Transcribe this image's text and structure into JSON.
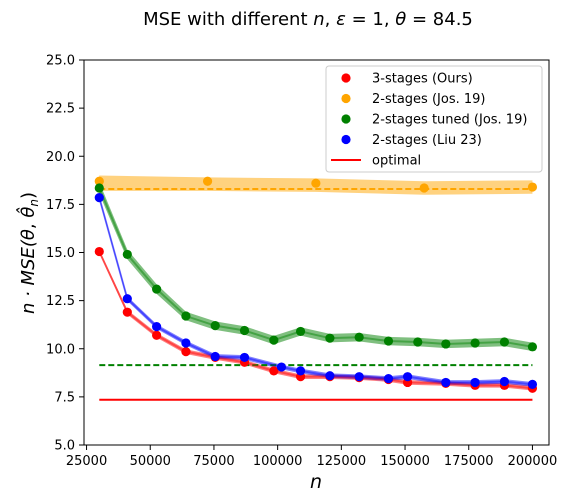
{
  "chart_data": {
    "type": "line",
    "title_prefix": "MSE with different ",
    "title_n": "n",
    "title_sep1": ", ",
    "title_eps": "ε",
    "title_eps_val": " = 1, ",
    "title_theta": "θ",
    "title_theta_val": " = 84.5",
    "xlabel": "n",
    "ylabel_prefix": "n · MSE(",
    "ylabel_theta": "θ",
    "ylabel_sep": ", ",
    "ylabel_thetahat": "θ̂",
    "ylabel_sub": "n",
    "ylabel_suffix": ")",
    "xlim": [
      24000,
      206500
    ],
    "ylim": [
      5.0,
      25.0
    ],
    "xticks": [
      25000,
      50000,
      75000,
      100000,
      125000,
      150000,
      175000,
      200000
    ],
    "xtick_labels": [
      "25000",
      "50000",
      "75000",
      "100000",
      "125000",
      "150000",
      "175000",
      "200000"
    ],
    "yticks": [
      5.0,
      7.5,
      10.0,
      12.5,
      15.0,
      17.5,
      20.0,
      22.5,
      25.0
    ],
    "ytick_labels": [
      "5.0",
      "7.5",
      "10.0",
      "12.5",
      "15.0",
      "17.5",
      "20.0",
      "22.5",
      "25.0"
    ],
    "legend_position": "top-right",
    "grid": false,
    "series": [
      {
        "name": "3-stages (Ours)",
        "color": "#ff0000",
        "band_color": "#ff0000",
        "x": [
          30000,
          41000,
          52500,
          64000,
          75500,
          87000,
          98500,
          109000,
          120500,
          132000,
          143500,
          151000,
          166000,
          177500,
          189000,
          200000
        ],
        "y": [
          15.05,
          11.9,
          10.7,
          9.85,
          9.55,
          9.3,
          8.85,
          8.55,
          8.55,
          8.5,
          8.4,
          8.25,
          8.2,
          8.1,
          8.1,
          7.95
        ],
        "band": [
          0.1,
          0.12,
          0.12,
          0.12,
          0.12,
          0.12,
          0.12,
          0.12,
          0.12,
          0.12,
          0.12,
          0.12,
          0.12,
          0.12,
          0.12,
          0.12
        ]
      },
      {
        "name": "2-stages (Jos. 19)",
        "color": "#ffa500",
        "band_color": "#ffa500",
        "x": [
          30000,
          72500,
          115000,
          157500,
          200000
        ],
        "y": [
          18.7,
          18.7,
          18.6,
          18.35,
          18.4
        ],
        "line_x": [
          30000,
          72500,
          115000,
          157500,
          200000
        ],
        "line_y": [
          18.6,
          18.55,
          18.5,
          18.35,
          18.4
        ],
        "band": [
          0.4,
          0.35,
          0.35,
          0.35,
          0.35
        ]
      },
      {
        "name": "2-stages tuned (Jos. 19)",
        "color": "#008000",
        "band_color": "#008000",
        "x": [
          30000,
          41000,
          52500,
          64000,
          75500,
          87000,
          98500,
          109000,
          120500,
          132000,
          143500,
          155000,
          166000,
          177500,
          189000,
          200000
        ],
        "y": [
          18.35,
          14.9,
          13.1,
          11.7,
          11.2,
          10.95,
          10.45,
          10.9,
          10.55,
          10.6,
          10.4,
          10.35,
          10.25,
          10.3,
          10.35,
          10.1
        ],
        "band": [
          0.3,
          0.25,
          0.25,
          0.22,
          0.22,
          0.22,
          0.22,
          0.22,
          0.22,
          0.22,
          0.22,
          0.22,
          0.22,
          0.22,
          0.22,
          0.22
        ]
      },
      {
        "name": "2-stages (Liu 23)",
        "color": "#0000ff",
        "band_color": "#0000ff",
        "x": [
          30000,
          41000,
          52500,
          64000,
          75500,
          87000,
          101500,
          109000,
          120500,
          132000,
          143500,
          151000,
          166000,
          177500,
          189000,
          200000
        ],
        "y": [
          17.85,
          12.6,
          11.15,
          10.3,
          9.6,
          9.55,
          9.05,
          8.85,
          8.6,
          8.55,
          8.45,
          8.55,
          8.25,
          8.25,
          8.3,
          8.15
        ],
        "band": [
          0.12,
          0.12,
          0.12,
          0.12,
          0.12,
          0.12,
          0.12,
          0.12,
          0.12,
          0.12,
          0.12,
          0.12,
          0.12,
          0.12,
          0.12,
          0.12
        ]
      }
    ],
    "reference_lines": [
      {
        "name": "optimal",
        "color": "#ff0000",
        "style": "solid",
        "x": [
          30000,
          200000
        ],
        "y": [
          7.35,
          7.35
        ]
      },
      {
        "name": "",
        "color": "#ffa500",
        "style": "dashed",
        "x": [
          30000,
          200000
        ],
        "y": [
          18.3,
          18.3
        ]
      },
      {
        "name": "",
        "color": "#008000",
        "style": "dashed",
        "x": [
          30000,
          200000
        ],
        "y": [
          9.15,
          9.15
        ]
      }
    ],
    "legend": [
      {
        "label": "3-stages (Ours)",
        "color": "#ff0000",
        "kind": "marker"
      },
      {
        "label": "2-stages (Jos. 19)",
        "color": "#ffa500",
        "kind": "marker"
      },
      {
        "label": "2-stages tuned (Jos. 19)",
        "color": "#008000",
        "kind": "marker"
      },
      {
        "label": "2-stages (Liu 23)",
        "color": "#0000ff",
        "kind": "marker"
      },
      {
        "label": "optimal",
        "color": "#ff0000",
        "kind": "line"
      }
    ]
  }
}
